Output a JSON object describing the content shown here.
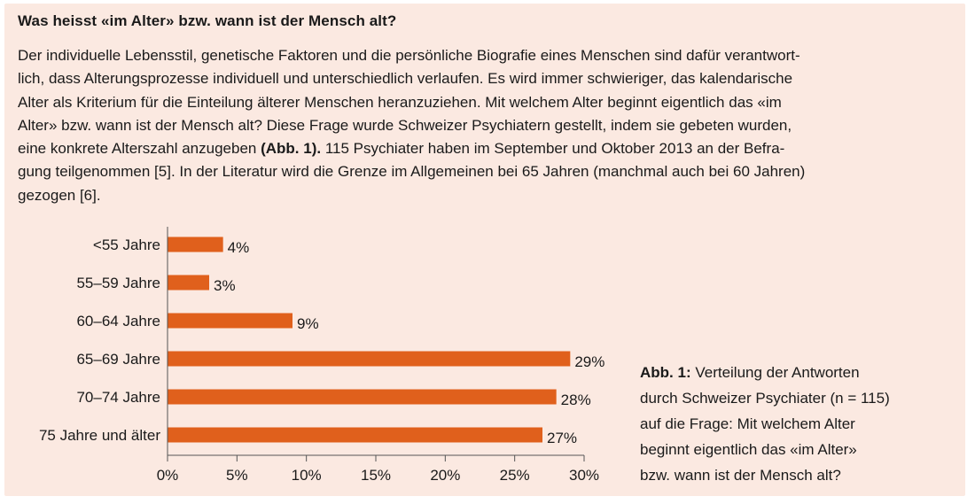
{
  "header": {
    "title": "Was heisst «im Alter» bzw. wann ist der Mensch alt?"
  },
  "article": {
    "lines": [
      "Der individuelle Lebensstil, genetische Faktoren und die persönliche Biografie eines Menschen sind dafür verantwort-",
      "lich, dass Alterungsprozesse individuell und unterschiedlich verlaufen. Es wird immer schwieriger, das kalendarische",
      "Alter als Kriterium für die Einteilung älterer Menschen heranzuziehen. Mit welchem Alter beginnt eigentlich das «im",
      "Alter» bzw. wann ist der Mensch alt? Diese Frage wurde Schweizer Psychiatern gestellt, indem sie gebeten wurden,",
      "eine konkrete Alterszahl anzugeben",
      "(Abb. 1).",
      " 115 Psychiater haben im September und Oktober 2013 an der Befra-",
      "gung teilgenommen [5]. In der Literatur wird die Grenze im Allgemeinen bei 65 Jahren (manchmal auch bei 60 Jahren)",
      "gezogen [6]."
    ]
  },
  "caption": {
    "label": "Abb. 1:",
    "lines": [
      " Verteilung der Antworten",
      "durch Schweizer Psychiater (n = 115)",
      "auf die Frage: Mit welchem Alter",
      "beginnt eigentlich das «im Alter»",
      "bzw. wann ist der Mensch alt?"
    ]
  },
  "chart_data": {
    "type": "bar",
    "orientation": "horizontal",
    "categories": [
      "<55 Jahre",
      "55–59 Jahre",
      "60–64 Jahre",
      "65–69 Jahre",
      "70–74 Jahre",
      "75 Jahre und älter"
    ],
    "values": [
      4,
      3,
      9,
      29,
      28,
      27
    ],
    "value_labels": [
      "4%",
      "3%",
      "9%",
      "29%",
      "28%",
      "27%"
    ],
    "xticks": [
      "0%",
      "5%",
      "10%",
      "15%",
      "20%",
      "25%",
      "30%"
    ],
    "xlim": [
      0,
      30
    ],
    "grid": false,
    "bar_color": "#e0601c"
  },
  "colors": {
    "panel_background": "#fbe9e1",
    "bar": "#e0601c",
    "axis": "#555555"
  }
}
